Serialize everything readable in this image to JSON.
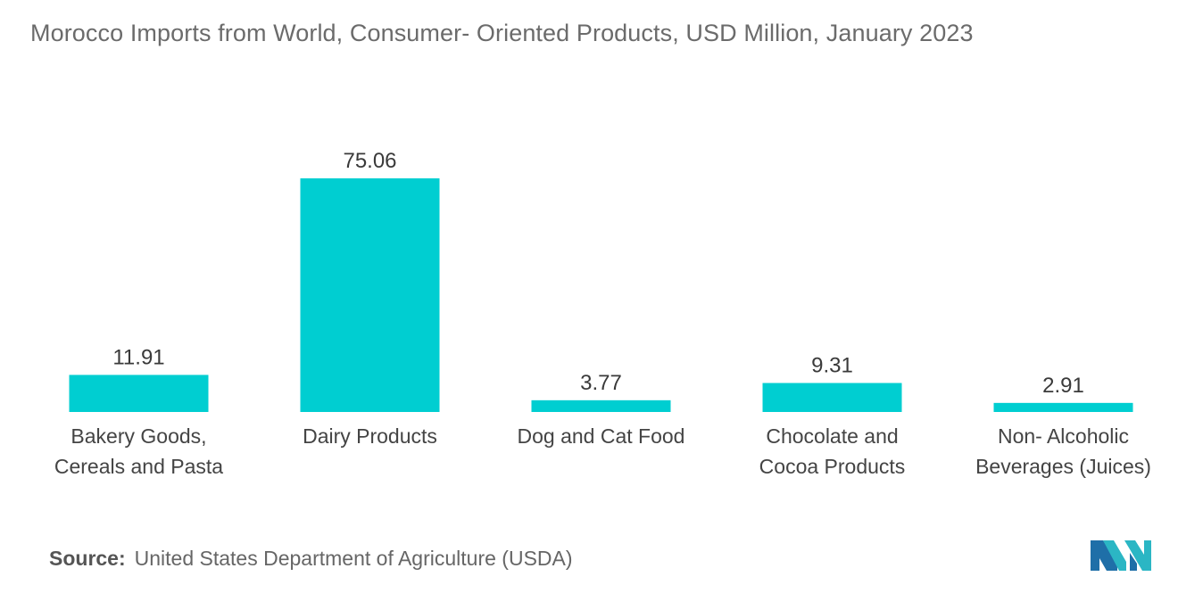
{
  "chart_data": {
    "type": "bar",
    "title": "Morocco Imports from World, Consumer- Oriented Products, USD Million, January 2023",
    "categories": [
      [
        "Bakery Goods,",
        "Cereals and Pasta"
      ],
      [
        "Dairy Products"
      ],
      [
        "Dog and Cat Food"
      ],
      [
        "Chocolate and",
        "Cocoa Products"
      ],
      [
        "Non- Alcoholic",
        "Beverages (Juices)"
      ]
    ],
    "values": [
      11.91,
      75.06,
      3.77,
      9.31,
      2.91
    ],
    "value_labels": [
      "11.91",
      "75.06",
      "3.77",
      "9.31",
      "2.91"
    ],
    "xlabel": "",
    "ylabel": "",
    "ylim": [
      0,
      75.06
    ],
    "grid": false,
    "bar_color": "#00CED1"
  },
  "source": {
    "label": "Source:",
    "text": "United States Department of Agriculture (USDA)"
  },
  "logo": {
    "icon": "mordor-intelligence-logo-icon",
    "colors": [
      "#1f6fa8",
      "#2bb6c4"
    ]
  }
}
